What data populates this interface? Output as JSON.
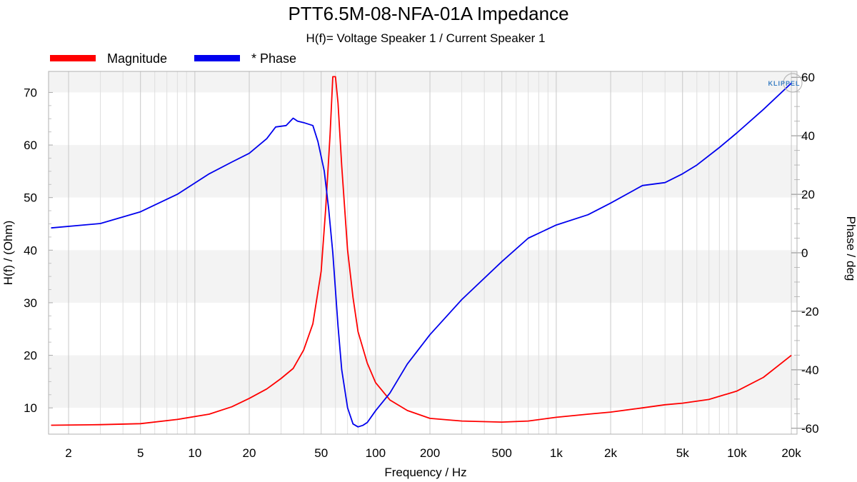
{
  "chart_data": {
    "type": "line",
    "title": "PTT6.5M-08-NFA-01A Impedance",
    "subtitle": "H(f)= Voltage Speaker 1 / Current Speaker 1",
    "xlabel": "Frequency / Hz",
    "ylabel_left": "H(f) / (Ohm)",
    "ylabel_right": "Phase / deg",
    "xscale": "log",
    "xlim": [
      1.55,
      21500
    ],
    "ylim_left": [
      5,
      74
    ],
    "ylim_right": [
      -62,
      62
    ],
    "x_ticks": [
      2,
      5,
      10,
      20,
      50,
      100,
      200,
      500,
      1000,
      2000,
      5000,
      10000,
      20000
    ],
    "x_tick_labels": [
      "2",
      "5",
      "10",
      "20",
      "50",
      "100",
      "200",
      "500",
      "1k",
      "2k",
      "5k",
      "10k",
      "20k"
    ],
    "y_ticks_left": [
      10,
      20,
      30,
      40,
      50,
      60,
      70
    ],
    "y_ticks_right": [
      -60,
      -40,
      -20,
      0,
      20,
      40,
      60
    ],
    "brand": "KLIPPEL",
    "series": [
      {
        "name": "Magnitude",
        "axis": "left",
        "color": "#ff0000",
        "x": [
          1.6,
          3,
          5,
          8,
          12,
          16,
          20,
          25,
          30,
          35,
          40,
          45,
          50,
          53,
          56,
          58,
          60,
          62,
          65,
          70,
          75,
          80,
          90,
          100,
          120,
          150,
          200,
          300,
          500,
          700,
          1000,
          1500,
          2000,
          3000,
          4000,
          5000,
          7000,
          10000,
          14000,
          20000
        ],
        "y": [
          6.7,
          6.8,
          7.0,
          7.8,
          8.8,
          10.2,
          11.8,
          13.6,
          15.6,
          17.5,
          21,
          26,
          36,
          48,
          62,
          73,
          73,
          68,
          56,
          40,
          31,
          24.5,
          18.5,
          14.8,
          11.5,
          9.5,
          8.0,
          7.5,
          7.3,
          7.5,
          8.2,
          8.8,
          9.2,
          10.0,
          10.6,
          10.9,
          11.6,
          13.2,
          15.8,
          20.0
        ]
      },
      {
        "name": "* Phase",
        "axis": "right",
        "color": "#0000ee",
        "x": [
          1.6,
          3,
          5,
          8,
          12,
          16,
          20,
          25,
          28,
          32,
          35,
          37,
          40,
          45,
          48,
          52,
          55,
          58,
          62,
          65,
          70,
          75,
          80,
          85,
          90,
          100,
          120,
          150,
          200,
          300,
          500,
          700,
          1000,
          1500,
          2000,
          3000,
          4000,
          5000,
          6000,
          8000,
          10000,
          14000,
          20000
        ],
        "y": [
          8.5,
          10,
          14,
          20,
          27,
          31,
          34,
          39,
          43,
          43.5,
          46,
          45,
          44.5,
          43.5,
          38,
          28,
          15,
          0,
          -25,
          -40,
          -53,
          -58.5,
          -59.5,
          -59,
          -58,
          -54,
          -48,
          -38,
          -28,
          -16,
          -3,
          5,
          9.5,
          13,
          17,
          23,
          24,
          27,
          30,
          36,
          41,
          49,
          58
        ]
      }
    ]
  }
}
